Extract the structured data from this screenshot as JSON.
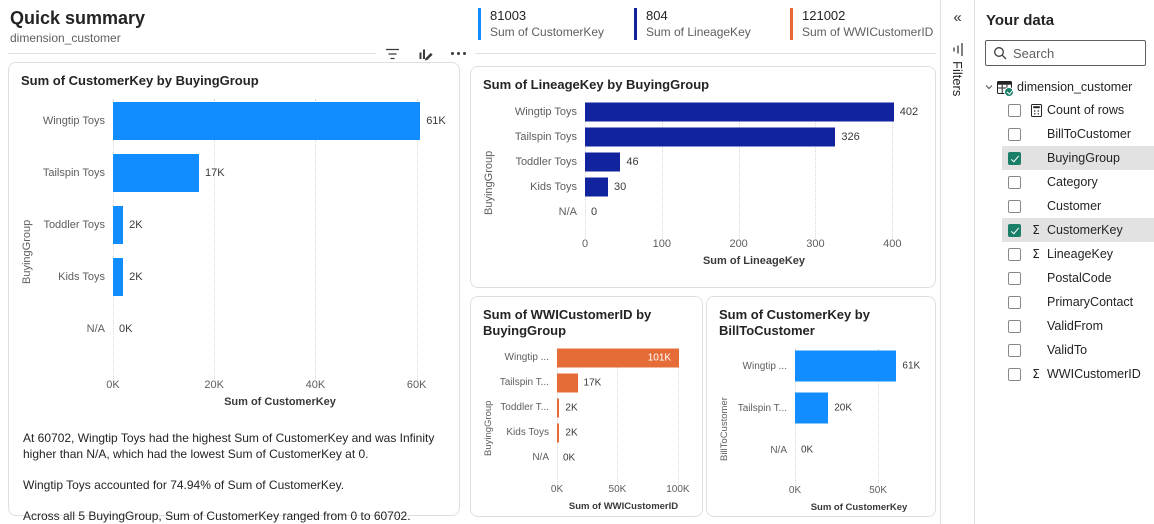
{
  "header": {
    "title": "Quick summary",
    "subtitle": "dimension_customer",
    "stats": [
      {
        "value": "81003",
        "label": "Sum of CustomerKey",
        "color": "#118DFF"
      },
      {
        "value": "804",
        "label": "Sum of LineageKey",
        "color": "#12239E"
      },
      {
        "value": "121002",
        "label": "Sum of WWICustomerID",
        "color": "#E66C37"
      }
    ]
  },
  "toolbar": {
    "filter_icon": "filter",
    "edit_icon": "edit-visual",
    "more_icon": "more-options"
  },
  "filters_pane": {
    "collapse_glyph": "«",
    "label": "Filters"
  },
  "chart_data": [
    {
      "type": "bar",
      "orientation": "horizontal",
      "title": "Sum of CustomerKey by BuyingGroup",
      "ylabel": "BuyingGroup",
      "xlabel": "Sum of CustomerKey",
      "categories": [
        "Wingtip Toys",
        "Tailspin Toys",
        "Toddler Toys",
        "Kids Toys",
        "N/A"
      ],
      "values": [
        60702,
        17000,
        2000,
        2000,
        0
      ],
      "value_labels": [
        "61K",
        "17K",
        "2K",
        "2K",
        "0K"
      ],
      "label_inside": [
        false,
        false,
        false,
        false,
        false
      ],
      "ticks": [
        {
          "value": 0,
          "label": "0K"
        },
        {
          "value": 20000,
          "label": "20K"
        },
        {
          "value": 40000,
          "label": "40K"
        },
        {
          "value": 60000,
          "label": "60K"
        }
      ],
      "axis_max": 66000,
      "color": "#118DFF",
      "grid": true,
      "legend": "none"
    },
    {
      "type": "bar",
      "orientation": "horizontal",
      "title": "Sum of LineageKey by BuyingGroup",
      "ylabel": "BuyingGroup",
      "xlabel": "Sum of LineageKey",
      "categories": [
        "Wingtip Toys",
        "Tailspin Toys",
        "Toddler Toys",
        "Kids Toys",
        "N/A"
      ],
      "values": [
        402,
        326,
        46,
        30,
        0
      ],
      "value_labels": [
        "402",
        "326",
        "46",
        "30",
        "0"
      ],
      "label_inside": [
        false,
        false,
        false,
        false,
        false
      ],
      "ticks": [
        {
          "value": 0,
          "label": "0"
        },
        {
          "value": 100,
          "label": "100"
        },
        {
          "value": 200,
          "label": "200"
        },
        {
          "value": 300,
          "label": "300"
        },
        {
          "value": 400,
          "label": "400"
        }
      ],
      "axis_max": 440,
      "color": "#12239E",
      "grid": true,
      "legend": "none"
    },
    {
      "type": "bar",
      "orientation": "horizontal",
      "title": "Sum of WWICustomerID by BuyingGroup",
      "ylabel": "BuyingGroup",
      "xlabel": "Sum of WWICustomerID",
      "categories": [
        "Wingtip ...",
        "Tailspin T...",
        "Toddler T...",
        "Kids Toys",
        "N/A"
      ],
      "values": [
        101000,
        17000,
        2000,
        2000,
        0
      ],
      "value_labels": [
        "101K",
        "17K",
        "2K",
        "2K",
        "0K"
      ],
      "label_inside": [
        true,
        false,
        false,
        false,
        false
      ],
      "ticks": [
        {
          "value": 0,
          "label": "0K"
        },
        {
          "value": 50000,
          "label": "50K"
        },
        {
          "value": 100000,
          "label": "100K"
        }
      ],
      "axis_max": 110000,
      "color": "#E66C37",
      "grid": true,
      "legend": "none"
    },
    {
      "type": "bar",
      "orientation": "horizontal",
      "title": "Sum of CustomerKey by BillToCustomer",
      "ylabel": "BillToCustomer",
      "xlabel": "Sum of CustomerKey",
      "categories": [
        "Wingtip ...",
        "Tailspin T...",
        "N/A"
      ],
      "values": [
        61000,
        20000,
        0
      ],
      "value_labels": [
        "61K",
        "20K",
        "0K"
      ],
      "label_inside": [
        false,
        false,
        false
      ],
      "ticks": [
        {
          "value": 0,
          "label": "0K"
        },
        {
          "value": 50000,
          "label": "50K"
        }
      ],
      "axis_max": 77000,
      "color": "#118DFF",
      "grid": true,
      "legend": "none"
    }
  ],
  "insights": [
    "At 60702, Wingtip Toys had the highest Sum of CustomerKey and was Infinity higher than N/A, which had the lowest Sum of CustomerKey at 0.",
    "Wingtip Toys accounted for 74.94% of Sum of CustomerKey.",
    "Across all 5 BuyingGroup, Sum of CustomerKey ranged from 0 to 60702."
  ],
  "data_pane": {
    "title": "Your data",
    "search_placeholder": "Search",
    "table": {
      "name": "dimension_customer",
      "expanded": true
    },
    "fields": [
      {
        "label": "Count of rows",
        "icon": "calculator",
        "checked": false,
        "highlighted": false
      },
      {
        "label": "BillToCustomer",
        "icon": null,
        "checked": false,
        "highlighted": false
      },
      {
        "label": "BuyingGroup",
        "icon": null,
        "checked": true,
        "highlighted": true
      },
      {
        "label": "Category",
        "icon": null,
        "checked": false,
        "highlighted": false
      },
      {
        "label": "Customer",
        "icon": null,
        "checked": false,
        "highlighted": false
      },
      {
        "label": "CustomerKey",
        "icon": "sigma",
        "checked": true,
        "highlighted": true
      },
      {
        "label": "LineageKey",
        "icon": "sigma",
        "checked": false,
        "highlighted": false
      },
      {
        "label": "PostalCode",
        "icon": null,
        "checked": false,
        "highlighted": false
      },
      {
        "label": "PrimaryContact",
        "icon": null,
        "checked": false,
        "highlighted": false
      },
      {
        "label": "ValidFrom",
        "icon": null,
        "checked": false,
        "highlighted": false
      },
      {
        "label": "ValidTo",
        "icon": null,
        "checked": false,
        "highlighted": false
      },
      {
        "label": "WWICustomerID",
        "icon": "sigma",
        "checked": false,
        "highlighted": false
      }
    ]
  }
}
